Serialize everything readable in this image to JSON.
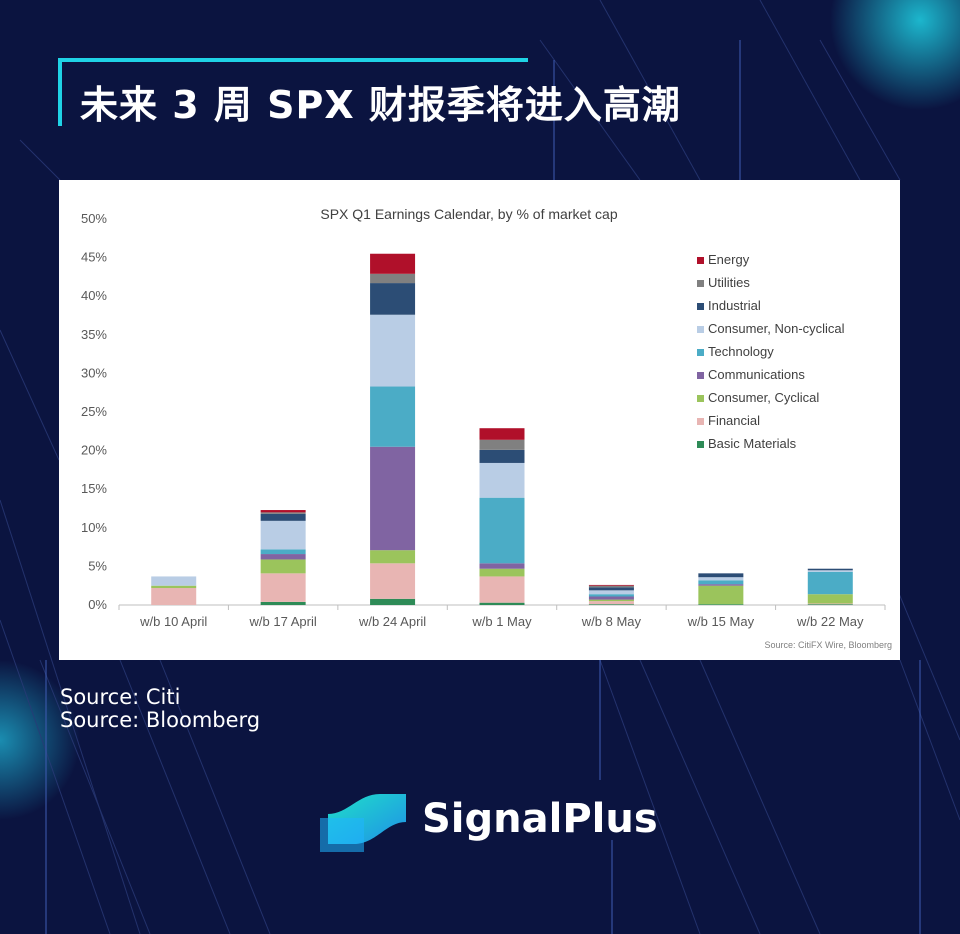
{
  "header": {
    "title": "未来 3 周 SPX 财报季将进入高潮"
  },
  "sources": [
    "Source: Citi",
    "Source: Bloomberg"
  ],
  "brand": {
    "name": "SignalPlus"
  },
  "colors": {
    "background": "#0b1440",
    "accent": "#1fd3e6",
    "Basic Materials": "#2e8b57",
    "Financial": "#e8b5b3",
    "Consumer, Cyclical": "#9bc45c",
    "Communications": "#8064a2",
    "Technology": "#4bacc6",
    "Consumer, Non-cyclical": "#b9cde5",
    "Industrial": "#2c4d75",
    "Utilities": "#808080",
    "Energy": "#b0102a"
  },
  "chart_data": {
    "type": "bar",
    "stacked": true,
    "title": "SPX Q1 Earnings Calendar, by % of market cap",
    "source_note": "Source: CitiFX Wire, Bloomberg",
    "xlabel": "",
    "ylabel": "",
    "ylim": [
      0,
      50
    ],
    "y_ticks": [
      "0%",
      "5%",
      "10%",
      "15%",
      "20%",
      "25%",
      "30%",
      "35%",
      "40%",
      "45%",
      "50%"
    ],
    "grid": false,
    "legend_position": "right",
    "categories": [
      "w/b 10 April",
      "w/b 17 April",
      "w/b 24 April",
      "w/b 1 May",
      "w/b 8 May",
      "w/b 15 May",
      "w/b 22 May"
    ],
    "series": [
      {
        "name": "Basic Materials",
        "values": [
          0.0,
          0.4,
          0.8,
          0.3,
          0.1,
          0.1,
          0.1
        ]
      },
      {
        "name": "Financial",
        "values": [
          2.2,
          3.7,
          4.6,
          3.4,
          0.4,
          0.0,
          0.1
        ]
      },
      {
        "name": "Consumer, Cyclical",
        "values": [
          0.3,
          1.8,
          1.7,
          1.0,
          0.2,
          2.4,
          1.2
        ]
      },
      {
        "name": "Communications",
        "values": [
          0.0,
          0.7,
          13.4,
          0.7,
          0.4,
          0.2,
          0.0
        ]
      },
      {
        "name": "Technology",
        "values": [
          0.0,
          0.6,
          7.8,
          8.5,
          0.3,
          0.5,
          2.9
        ]
      },
      {
        "name": "Consumer, Non-cyclical",
        "values": [
          1.2,
          3.7,
          9.3,
          4.5,
          0.5,
          0.4,
          0.2
        ]
      },
      {
        "name": "Industrial",
        "values": [
          0.0,
          0.9,
          4.1,
          1.7,
          0.4,
          0.5,
          0.2
        ]
      },
      {
        "name": "Utilities",
        "values": [
          0.0,
          0.2,
          1.2,
          1.3,
          0.2,
          0.0,
          0.0
        ]
      },
      {
        "name": "Energy",
        "values": [
          0.0,
          0.3,
          2.6,
          1.5,
          0.1,
          0.0,
          0.0
        ]
      }
    ]
  }
}
